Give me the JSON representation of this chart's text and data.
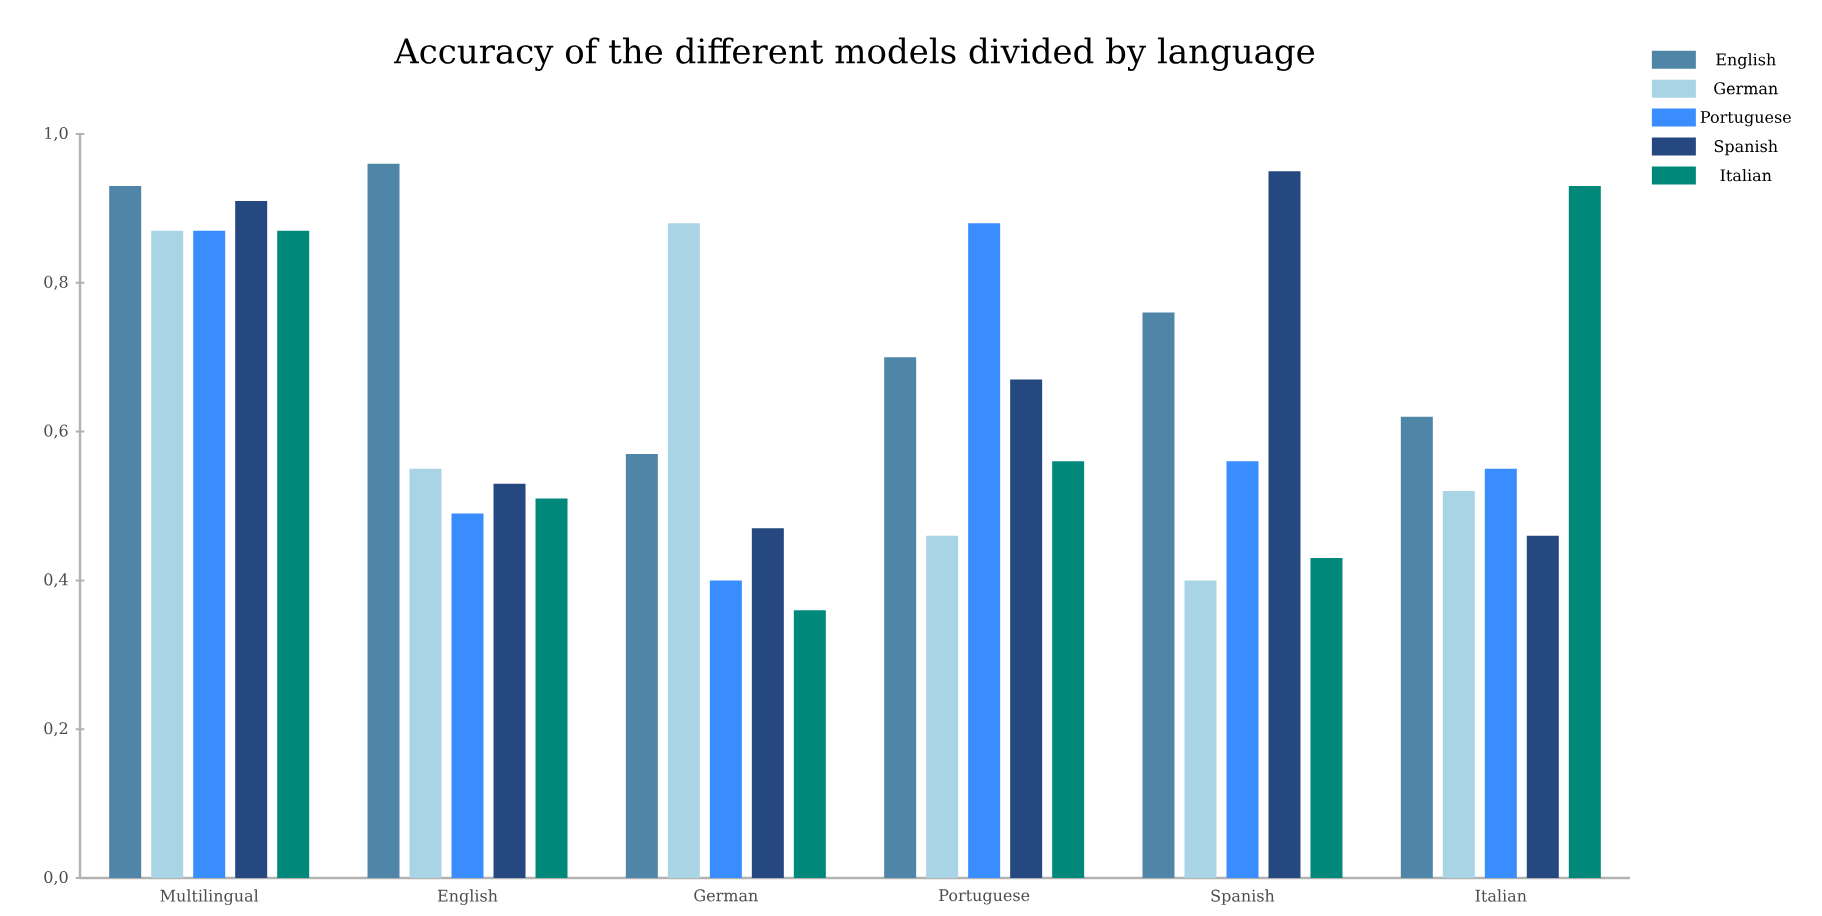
{
  "chart_data": {
    "type": "bar",
    "title": "Accuracy of the different models divided by language",
    "categories": [
      "Multilingual",
      "English",
      "German",
      "Portuguese",
      "Spanish",
      "Italian"
    ],
    "series": [
      {
        "name": "English",
        "color": "#4f86a8",
        "values": [
          0.93,
          0.96,
          0.57,
          0.7,
          0.76,
          0.62
        ]
      },
      {
        "name": "German",
        "color": "#a9d4e6",
        "values": [
          0.87,
          0.55,
          0.88,
          0.46,
          0.4,
          0.52
        ]
      },
      {
        "name": "Portuguese",
        "color": "#3a8dff",
        "values": [
          0.87,
          0.49,
          0.4,
          0.88,
          0.56,
          0.55
        ]
      },
      {
        "name": "Spanish",
        "color": "#24487f",
        "values": [
          0.91,
          0.53,
          0.47,
          0.67,
          0.95,
          0.46
        ]
      },
      {
        "name": "Italian",
        "color": "#00897b",
        "values": [
          0.87,
          0.51,
          0.36,
          0.56,
          0.43,
          0.93
        ]
      }
    ],
    "ylim": [
      0,
      1
    ],
    "yticks": [
      {
        "value": 0,
        "label": "0,0"
      },
      {
        "value": 0.2,
        "label": "0,2"
      },
      {
        "value": 0.4,
        "label": "0,4"
      },
      {
        "value": 0.6,
        "label": "0,6"
      },
      {
        "value": 0.8,
        "label": "0,8"
      },
      {
        "value": 1,
        "label": "1,0"
      }
    ],
    "legend": "top right"
  }
}
